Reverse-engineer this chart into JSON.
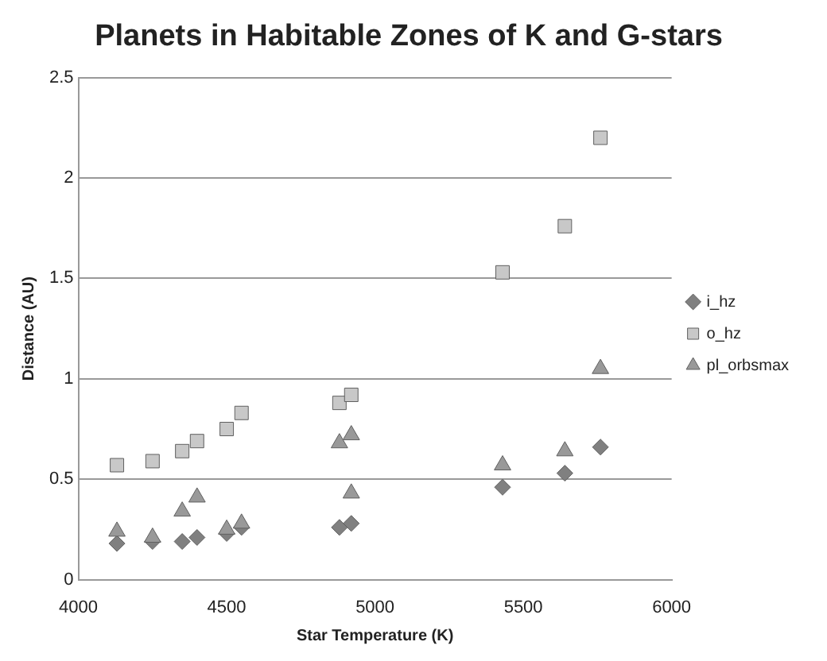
{
  "chart_data": {
    "type": "scatter",
    "title": "Planets in Habitable Zones of K and G-stars",
    "xlabel": "Star Temperature (K)",
    "ylabel": "Distance (AU)",
    "xlim": [
      4000,
      6000
    ],
    "xticks": [
      4000,
      4500,
      5000,
      5500,
      6000
    ],
    "ylim": [
      0,
      2.5
    ],
    "yticks": [
      0,
      0.5,
      1,
      1.5,
      2,
      2.5
    ],
    "grid": "y",
    "legend": "right",
    "series": [
      {
        "name": "i_hz",
        "color": "#808080",
        "marker": "diamond",
        "x": [
          4130,
          4250,
          4350,
          4400,
          4500,
          4550,
          4880,
          4920,
          5430,
          5640,
          5760
        ],
        "values": [
          0.18,
          0.19,
          0.19,
          0.21,
          0.23,
          0.26,
          0.26,
          0.28,
          0.46,
          0.53,
          0.66
        ]
      },
      {
        "name": "o_hz",
        "color": "#c8c8c8",
        "marker": "square",
        "x": [
          4130,
          4250,
          4350,
          4400,
          4500,
          4550,
          4880,
          4920,
          5430,
          5640,
          5760
        ],
        "values": [
          0.57,
          0.59,
          0.64,
          0.69,
          0.75,
          0.83,
          0.88,
          0.92,
          1.53,
          1.76,
          2.2
        ]
      },
      {
        "name": "pl_orbsmax",
        "color": "#999999",
        "marker": "triangle",
        "x": [
          4130,
          4250,
          4350,
          4400,
          4500,
          4550,
          4880,
          4920,
          4920,
          5430,
          5640,
          5760
        ],
        "values": [
          0.24,
          0.21,
          0.34,
          0.41,
          0.25,
          0.28,
          0.68,
          0.72,
          0.43,
          0.57,
          0.64,
          1.05
        ]
      }
    ]
  }
}
